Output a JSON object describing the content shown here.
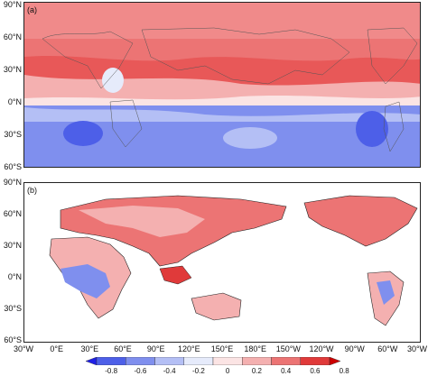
{
  "panels": [
    {
      "label": "(a)"
    },
    {
      "label": "(b)"
    }
  ],
  "lat_labels_a": [
    "90°N",
    "60°N",
    "30°N",
    "0°N",
    "30°S",
    "60°S"
  ],
  "lat_labels_b": [
    "90°N",
    "60°N",
    "30°N",
    "0°N",
    "30°S",
    "60°S"
  ],
  "lon_labels": [
    "30°W",
    "0°E",
    "30°E",
    "60°E",
    "90°E",
    "120°E",
    "150°E",
    "180°E",
    "150°W",
    "120°W",
    "90°W",
    "60°W",
    "30°W"
  ],
  "colorbar": {
    "ticks": [
      "-0.8",
      "-0.6",
      "-0.4",
      "-0.2",
      "0",
      "0.2",
      "0.4",
      "0.6",
      "0.8"
    ],
    "colors": [
      "#1f1fe6",
      "#4d5fe8",
      "#7f8fee",
      "#b4bff5",
      "#e6ebfb",
      "#fbe4e4",
      "#f4b0b0",
      "#ec7474",
      "#e03a3a",
      "#cc0000"
    ]
  }
}
